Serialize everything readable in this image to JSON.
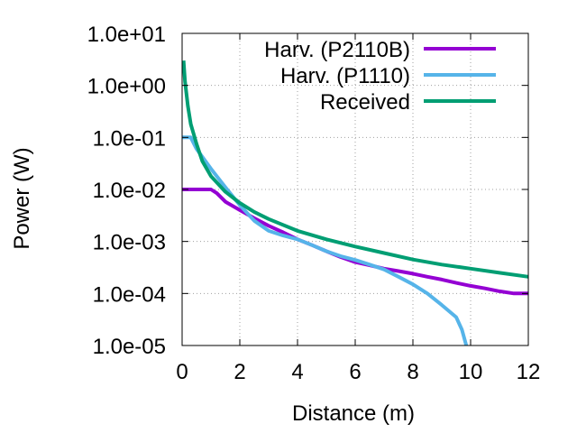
{
  "chart_data": {
    "type": "line",
    "title": "",
    "xlabel": "Distance (m)",
    "ylabel": "Power (W)",
    "xlim": [
      0,
      12
    ],
    "ylim": [
      1e-05,
      10
    ],
    "yscale": "log",
    "grid": true,
    "legend_position": "top-right",
    "x_ticks": [
      0,
      2,
      4,
      6,
      8,
      10,
      12
    ],
    "x_tick_labels": [
      "0",
      "2",
      "4",
      "6",
      "8",
      "10",
      "12"
    ],
    "y_ticks": [
      10,
      1,
      0.1,
      0.01,
      0.001,
      0.0001,
      1e-05
    ],
    "y_tick_labels": [
      "1.0e+01",
      "1.0e+00",
      "1.0e-01",
      "1.0e-02",
      "1.0e-03",
      "1.0e-04",
      "1.0e-05"
    ],
    "series": [
      {
        "name": "Harv. (P2110B)",
        "color": "#9400d3",
        "x": [
          0,
          0.5,
          1.0,
          1.2,
          1.5,
          2.0,
          2.5,
          3.0,
          3.5,
          4.0,
          4.5,
          5.0,
          5.5,
          6.0,
          6.5,
          7.0,
          7.5,
          8.0,
          8.5,
          9.0,
          9.5,
          10.0,
          10.5,
          11.0,
          11.5,
          12.0
        ],
        "y": [
          0.01,
          0.01,
          0.01,
          0.0085,
          0.0058,
          0.004,
          0.0028,
          0.002,
          0.0015,
          0.0011,
          0.00085,
          0.00065,
          0.0005,
          0.0004,
          0.00035,
          0.0003,
          0.00027,
          0.00024,
          0.00021,
          0.000185,
          0.00016,
          0.00014,
          0.000125,
          0.00011,
          0.0001,
          0.0001
        ]
      },
      {
        "name": "Harv. (P1110)",
        "color": "#56b4e9",
        "x": [
          0,
          0.3,
          0.5,
          1.0,
          1.5,
          2.0,
          2.5,
          3.0,
          3.5,
          4.0,
          4.5,
          5.0,
          5.5,
          6.0,
          6.5,
          7.0,
          7.5,
          8.0,
          8.5,
          9.0,
          9.5,
          9.7,
          9.85
        ],
        "y": [
          0.1,
          0.1,
          0.06,
          0.025,
          0.011,
          0.005,
          0.0025,
          0.0016,
          0.0013,
          0.0011,
          0.00085,
          0.00065,
          0.00052,
          0.00044,
          0.00036,
          0.00029,
          0.00021,
          0.00015,
          0.0001,
          6e-05,
          3.5e-05,
          2e-05,
          1e-05
        ]
      },
      {
        "name": "Received",
        "color": "#009e73",
        "x": [
          0.05,
          0.1,
          0.2,
          0.3,
          0.5,
          0.7,
          1.0,
          1.5,
          2.0,
          2.5,
          3.0,
          4.0,
          5.0,
          6.0,
          7.0,
          8.0,
          9.0,
          10.0,
          11.0,
          12.0
        ],
        "y": [
          3.0,
          1.2,
          0.4,
          0.18,
          0.075,
          0.035,
          0.018,
          0.009,
          0.0055,
          0.0037,
          0.0027,
          0.0016,
          0.0011,
          0.0008,
          0.0006,
          0.00045,
          0.00036,
          0.0003,
          0.00025,
          0.00021
        ]
      }
    ]
  }
}
